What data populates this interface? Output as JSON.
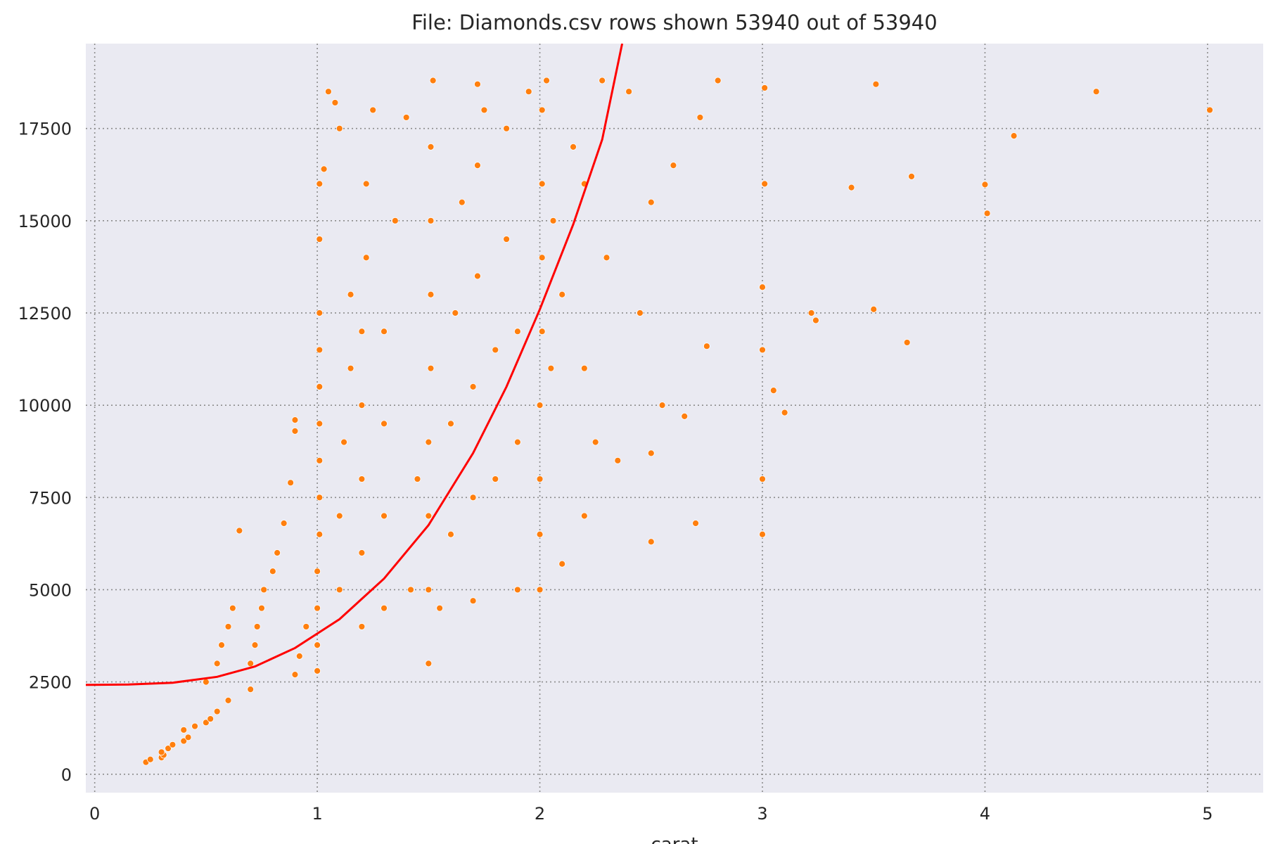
{
  "chart_data": {
    "type": "scatter",
    "title": "File: Diamonds.csv rows shown 53940 out of 53940",
    "xlabel": "carat",
    "ylabel": "",
    "xlim": [
      -0.04,
      5.25
    ],
    "ylim": [
      -500,
      19800
    ],
    "x_ticks": [
      0,
      1,
      2,
      3,
      4,
      5
    ],
    "y_ticks": [
      0,
      2500,
      5000,
      7500,
      10000,
      12500,
      15000,
      17500
    ],
    "grid": true,
    "colors": {
      "background": "#eaeaf2",
      "points": "#ff7f0e",
      "point_edge": "#ffffff",
      "fit_line": "#ff0000",
      "grid": "#8c8c8c"
    },
    "series": [
      {
        "type": "scatter",
        "points": [
          [
            0.23,
            326
          ],
          [
            0.25,
            400
          ],
          [
            0.3,
            450
          ],
          [
            0.31,
            520
          ],
          [
            0.3,
            600
          ],
          [
            0.33,
            700
          ],
          [
            0.35,
            800
          ],
          [
            0.4,
            900
          ],
          [
            0.42,
            1000
          ],
          [
            0.4,
            1200
          ],
          [
            0.45,
            1300
          ],
          [
            0.5,
            1400
          ],
          [
            0.52,
            1500
          ],
          [
            0.55,
            1700
          ],
          [
            0.6,
            2000
          ],
          [
            0.5,
            2500
          ],
          [
            0.55,
            3000
          ],
          [
            0.57,
            3500
          ],
          [
            0.6,
            4000
          ],
          [
            0.62,
            4500
          ],
          [
            0.65,
            6600
          ],
          [
            0.7,
            2300
          ],
          [
            0.7,
            3000
          ],
          [
            0.72,
            3500
          ],
          [
            0.73,
            4000
          ],
          [
            0.75,
            4500
          ],
          [
            0.76,
            5000
          ],
          [
            0.8,
            5500
          ],
          [
            0.82,
            6000
          ],
          [
            0.85,
            6800
          ],
          [
            0.88,
            7900
          ],
          [
            0.9,
            9300
          ],
          [
            0.9,
            9600
          ],
          [
            0.9,
            2700
          ],
          [
            0.92,
            3200
          ],
          [
            0.95,
            4000
          ],
          [
            1.0,
            2800
          ],
          [
            1.0,
            3500
          ],
          [
            1.0,
            4500
          ],
          [
            1.0,
            5500
          ],
          [
            1.01,
            6500
          ],
          [
            1.01,
            7500
          ],
          [
            1.01,
            8500
          ],
          [
            1.01,
            9500
          ],
          [
            1.01,
            10500
          ],
          [
            1.01,
            11500
          ],
          [
            1.01,
            12500
          ],
          [
            1.01,
            14500
          ],
          [
            1.01,
            16000
          ],
          [
            1.03,
            16400
          ],
          [
            1.05,
            18500
          ],
          [
            1.08,
            18200
          ],
          [
            1.1,
            17500
          ],
          [
            1.1,
            5000
          ],
          [
            1.1,
            7000
          ],
          [
            1.12,
            9000
          ],
          [
            1.15,
            11000
          ],
          [
            1.15,
            13000
          ],
          [
            1.2,
            4000
          ],
          [
            1.2,
            6000
          ],
          [
            1.2,
            8000
          ],
          [
            1.2,
            10000
          ],
          [
            1.2,
            12000
          ],
          [
            1.22,
            14000
          ],
          [
            1.22,
            16000
          ],
          [
            1.25,
            18000
          ],
          [
            1.3,
            4500
          ],
          [
            1.3,
            7000
          ],
          [
            1.3,
            9500
          ],
          [
            1.3,
            12000
          ],
          [
            1.35,
            15000
          ],
          [
            1.4,
            17800
          ],
          [
            1.42,
            5000
          ],
          [
            1.45,
            8000
          ],
          [
            1.5,
            3000
          ],
          [
            1.5,
            5000
          ],
          [
            1.5,
            7000
          ],
          [
            1.5,
            9000
          ],
          [
            1.51,
            11000
          ],
          [
            1.51,
            13000
          ],
          [
            1.51,
            15000
          ],
          [
            1.51,
            17000
          ],
          [
            1.52,
            18800
          ],
          [
            1.55,
            4500
          ],
          [
            1.6,
            6500
          ],
          [
            1.6,
            9500
          ],
          [
            1.62,
            12500
          ],
          [
            1.65,
            15500
          ],
          [
            1.7,
            4700
          ],
          [
            1.7,
            7500
          ],
          [
            1.7,
            10500
          ],
          [
            1.72,
            13500
          ],
          [
            1.72,
            16500
          ],
          [
            1.72,
            18700
          ],
          [
            1.75,
            18000
          ],
          [
            1.8,
            8000
          ],
          [
            1.8,
            11500
          ],
          [
            1.85,
            14500
          ],
          [
            1.85,
            17500
          ],
          [
            1.9,
            5000
          ],
          [
            1.9,
            9000
          ],
          [
            1.9,
            12000
          ],
          [
            1.95,
            18500
          ],
          [
            2.0,
            5000
          ],
          [
            2.0,
            6500
          ],
          [
            2.0,
            8000
          ],
          [
            2.0,
            10000
          ],
          [
            2.01,
            12000
          ],
          [
            2.01,
            14000
          ],
          [
            2.01,
            16000
          ],
          [
            2.01,
            18000
          ],
          [
            2.03,
            18800
          ],
          [
            2.05,
            11000
          ],
          [
            2.06,
            15000
          ],
          [
            2.1,
            5700
          ],
          [
            2.1,
            13000
          ],
          [
            2.15,
            17000
          ],
          [
            2.2,
            7000
          ],
          [
            2.2,
            11000
          ],
          [
            2.2,
            16000
          ],
          [
            2.25,
            9000
          ],
          [
            2.28,
            18800
          ],
          [
            2.3,
            14000
          ],
          [
            2.35,
            8500
          ],
          [
            2.4,
            18500
          ],
          [
            2.45,
            12500
          ],
          [
            2.5,
            6300
          ],
          [
            2.5,
            8700
          ],
          [
            2.5,
            15500
          ],
          [
            2.55,
            10000
          ],
          [
            2.6,
            16500
          ],
          [
            2.65,
            9700
          ],
          [
            2.7,
            6800
          ],
          [
            2.72,
            17800
          ],
          [
            2.75,
            11600
          ],
          [
            2.8,
            18800
          ],
          [
            3.0,
            6500
          ],
          [
            3.0,
            8000
          ],
          [
            3.0,
            11500
          ],
          [
            3.0,
            13200
          ],
          [
            3.01,
            16000
          ],
          [
            3.01,
            18600
          ],
          [
            3.05,
            10400
          ],
          [
            3.1,
            9800
          ],
          [
            3.22,
            12500
          ],
          [
            3.24,
            12300
          ],
          [
            3.4,
            15900
          ],
          [
            3.5,
            12600
          ],
          [
            3.51,
            18700
          ],
          [
            3.65,
            11700
          ],
          [
            3.67,
            16200
          ],
          [
            4.0,
            15980
          ],
          [
            4.01,
            15200
          ],
          [
            4.13,
            17300
          ],
          [
            4.5,
            18500
          ],
          [
            5.01,
            18000
          ]
        ]
      },
      {
        "type": "line",
        "points": [
          [
            -0.04,
            2420
          ],
          [
            0.15,
            2430
          ],
          [
            0.35,
            2480
          ],
          [
            0.55,
            2640
          ],
          [
            0.72,
            2920
          ],
          [
            0.9,
            3420
          ],
          [
            1.1,
            4200
          ],
          [
            1.3,
            5300
          ],
          [
            1.5,
            6750
          ],
          [
            1.7,
            8700
          ],
          [
            1.85,
            10500
          ],
          [
            2.0,
            12600
          ],
          [
            2.15,
            14900
          ],
          [
            2.28,
            17200
          ],
          [
            2.37,
            19800
          ]
        ]
      }
    ]
  }
}
